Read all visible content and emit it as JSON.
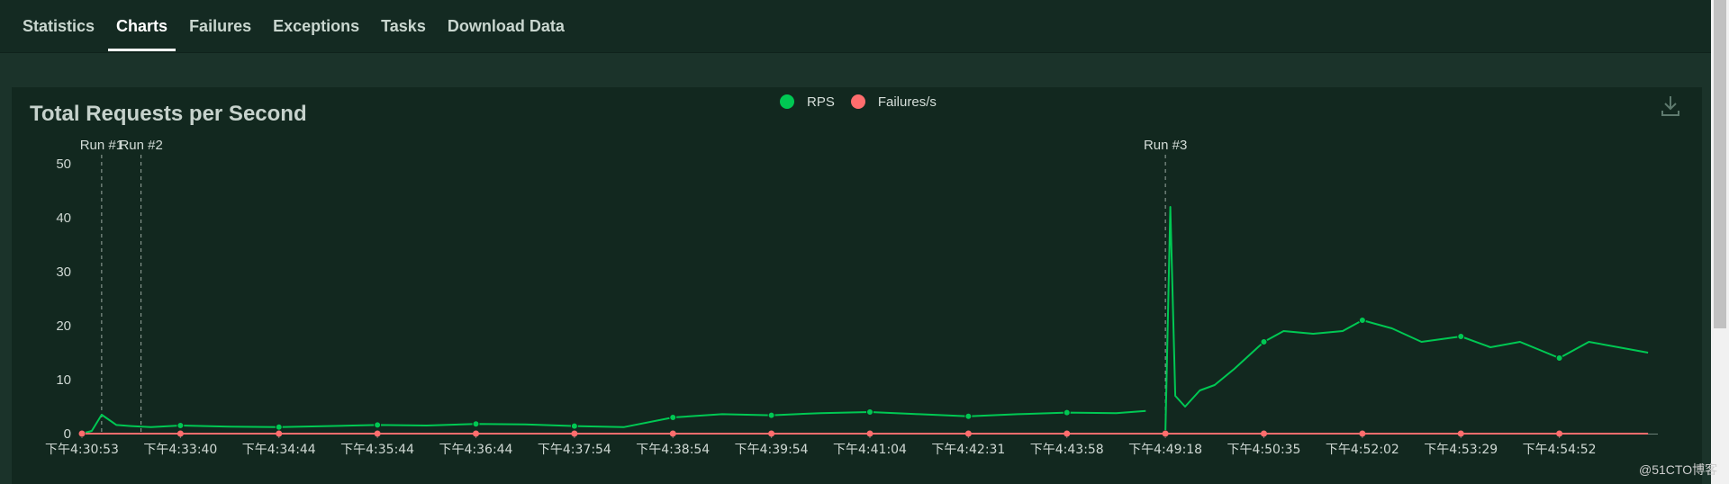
{
  "tabs": [
    {
      "label": "Statistics",
      "active": false
    },
    {
      "label": "Charts",
      "active": true
    },
    {
      "label": "Failures",
      "active": false
    },
    {
      "label": "Exceptions",
      "active": false
    },
    {
      "label": "Tasks",
      "active": false
    },
    {
      "label": "Download Data",
      "active": false
    }
  ],
  "icons": {
    "download": "download-icon"
  },
  "watermark": "@51CTO博客",
  "colors": {
    "background": "#1b332a",
    "panel": "#12281f",
    "rps": "#00c853",
    "failures": "#ff6d6d",
    "axis_text": "#cfd8d3"
  },
  "chart_data": {
    "type": "line",
    "title": "Total Requests per Second",
    "xlabel": "",
    "ylabel": "",
    "ylim": [
      0,
      50
    ],
    "yticks": [
      0,
      10,
      20,
      30,
      40,
      50
    ],
    "grid": false,
    "legend_position": "top-center",
    "xtick_labels": [
      "下午4:30:53",
      "下午4:33:40",
      "下午4:34:44",
      "下午4:35:44",
      "下午4:36:44",
      "下午4:37:54",
      "下午4:38:54",
      "下午4:39:54",
      "下午4:41:04",
      "下午4:42:31",
      "下午4:43:58",
      "下午4:49:18",
      "下午4:50:35",
      "下午4:52:02",
      "下午4:53:29",
      "下午4:54:52"
    ],
    "markers": [
      {
        "label": "Run #1",
        "x": 0.2
      },
      {
        "label": "Run #2",
        "x": 0.6
      },
      {
        "label": "Run #3",
        "x": 11
      }
    ],
    "series": [
      {
        "name": "RPS",
        "color": "#00c853",
        "segments": [
          {
            "x": [
              0.0,
              0.1,
              0.2,
              0.35,
              0.5,
              0.7,
              1.0,
              1.5,
              2.0,
              2.5,
              3.0,
              3.5,
              4.0,
              4.5,
              5.0,
              5.5,
              6.0,
              6.5,
              7.0,
              7.5,
              8.0,
              8.5,
              9.0,
              9.5,
              10.0,
              10.5,
              10.8
            ],
            "y": [
              0,
              0.5,
              3.5,
              1.6,
              1.4,
              1.2,
              1.5,
              1.3,
              1.2,
              1.4,
              1.6,
              1.5,
              1.8,
              1.7,
              1.4,
              1.2,
              3.0,
              3.6,
              3.4,
              3.8,
              4.0,
              3.6,
              3.2,
              3.6,
              3.9,
              3.8,
              4.2
            ]
          },
          {
            "x": [
              11.0,
              11.05,
              11.1,
              11.2,
              11.35,
              11.5,
              11.7,
              12.0,
              12.2,
              12.5,
              12.8,
              13.0,
              13.3,
              13.6,
              14.0,
              14.3,
              14.6,
              15.0,
              15.3,
              15.6,
              15.9
            ],
            "y": [
              0,
              42,
              7,
              5,
              8,
              9,
              12,
              17,
              19,
              18.5,
              19,
              21,
              19.5,
              17,
              18,
              16,
              17,
              14,
              17,
              16,
              15
            ]
          }
        ]
      },
      {
        "name": "Failures/s",
        "color": "#ff6d6d",
        "segments": [
          {
            "x": [
              0,
              15.9
            ],
            "y": [
              0,
              0
            ]
          }
        ]
      }
    ]
  }
}
